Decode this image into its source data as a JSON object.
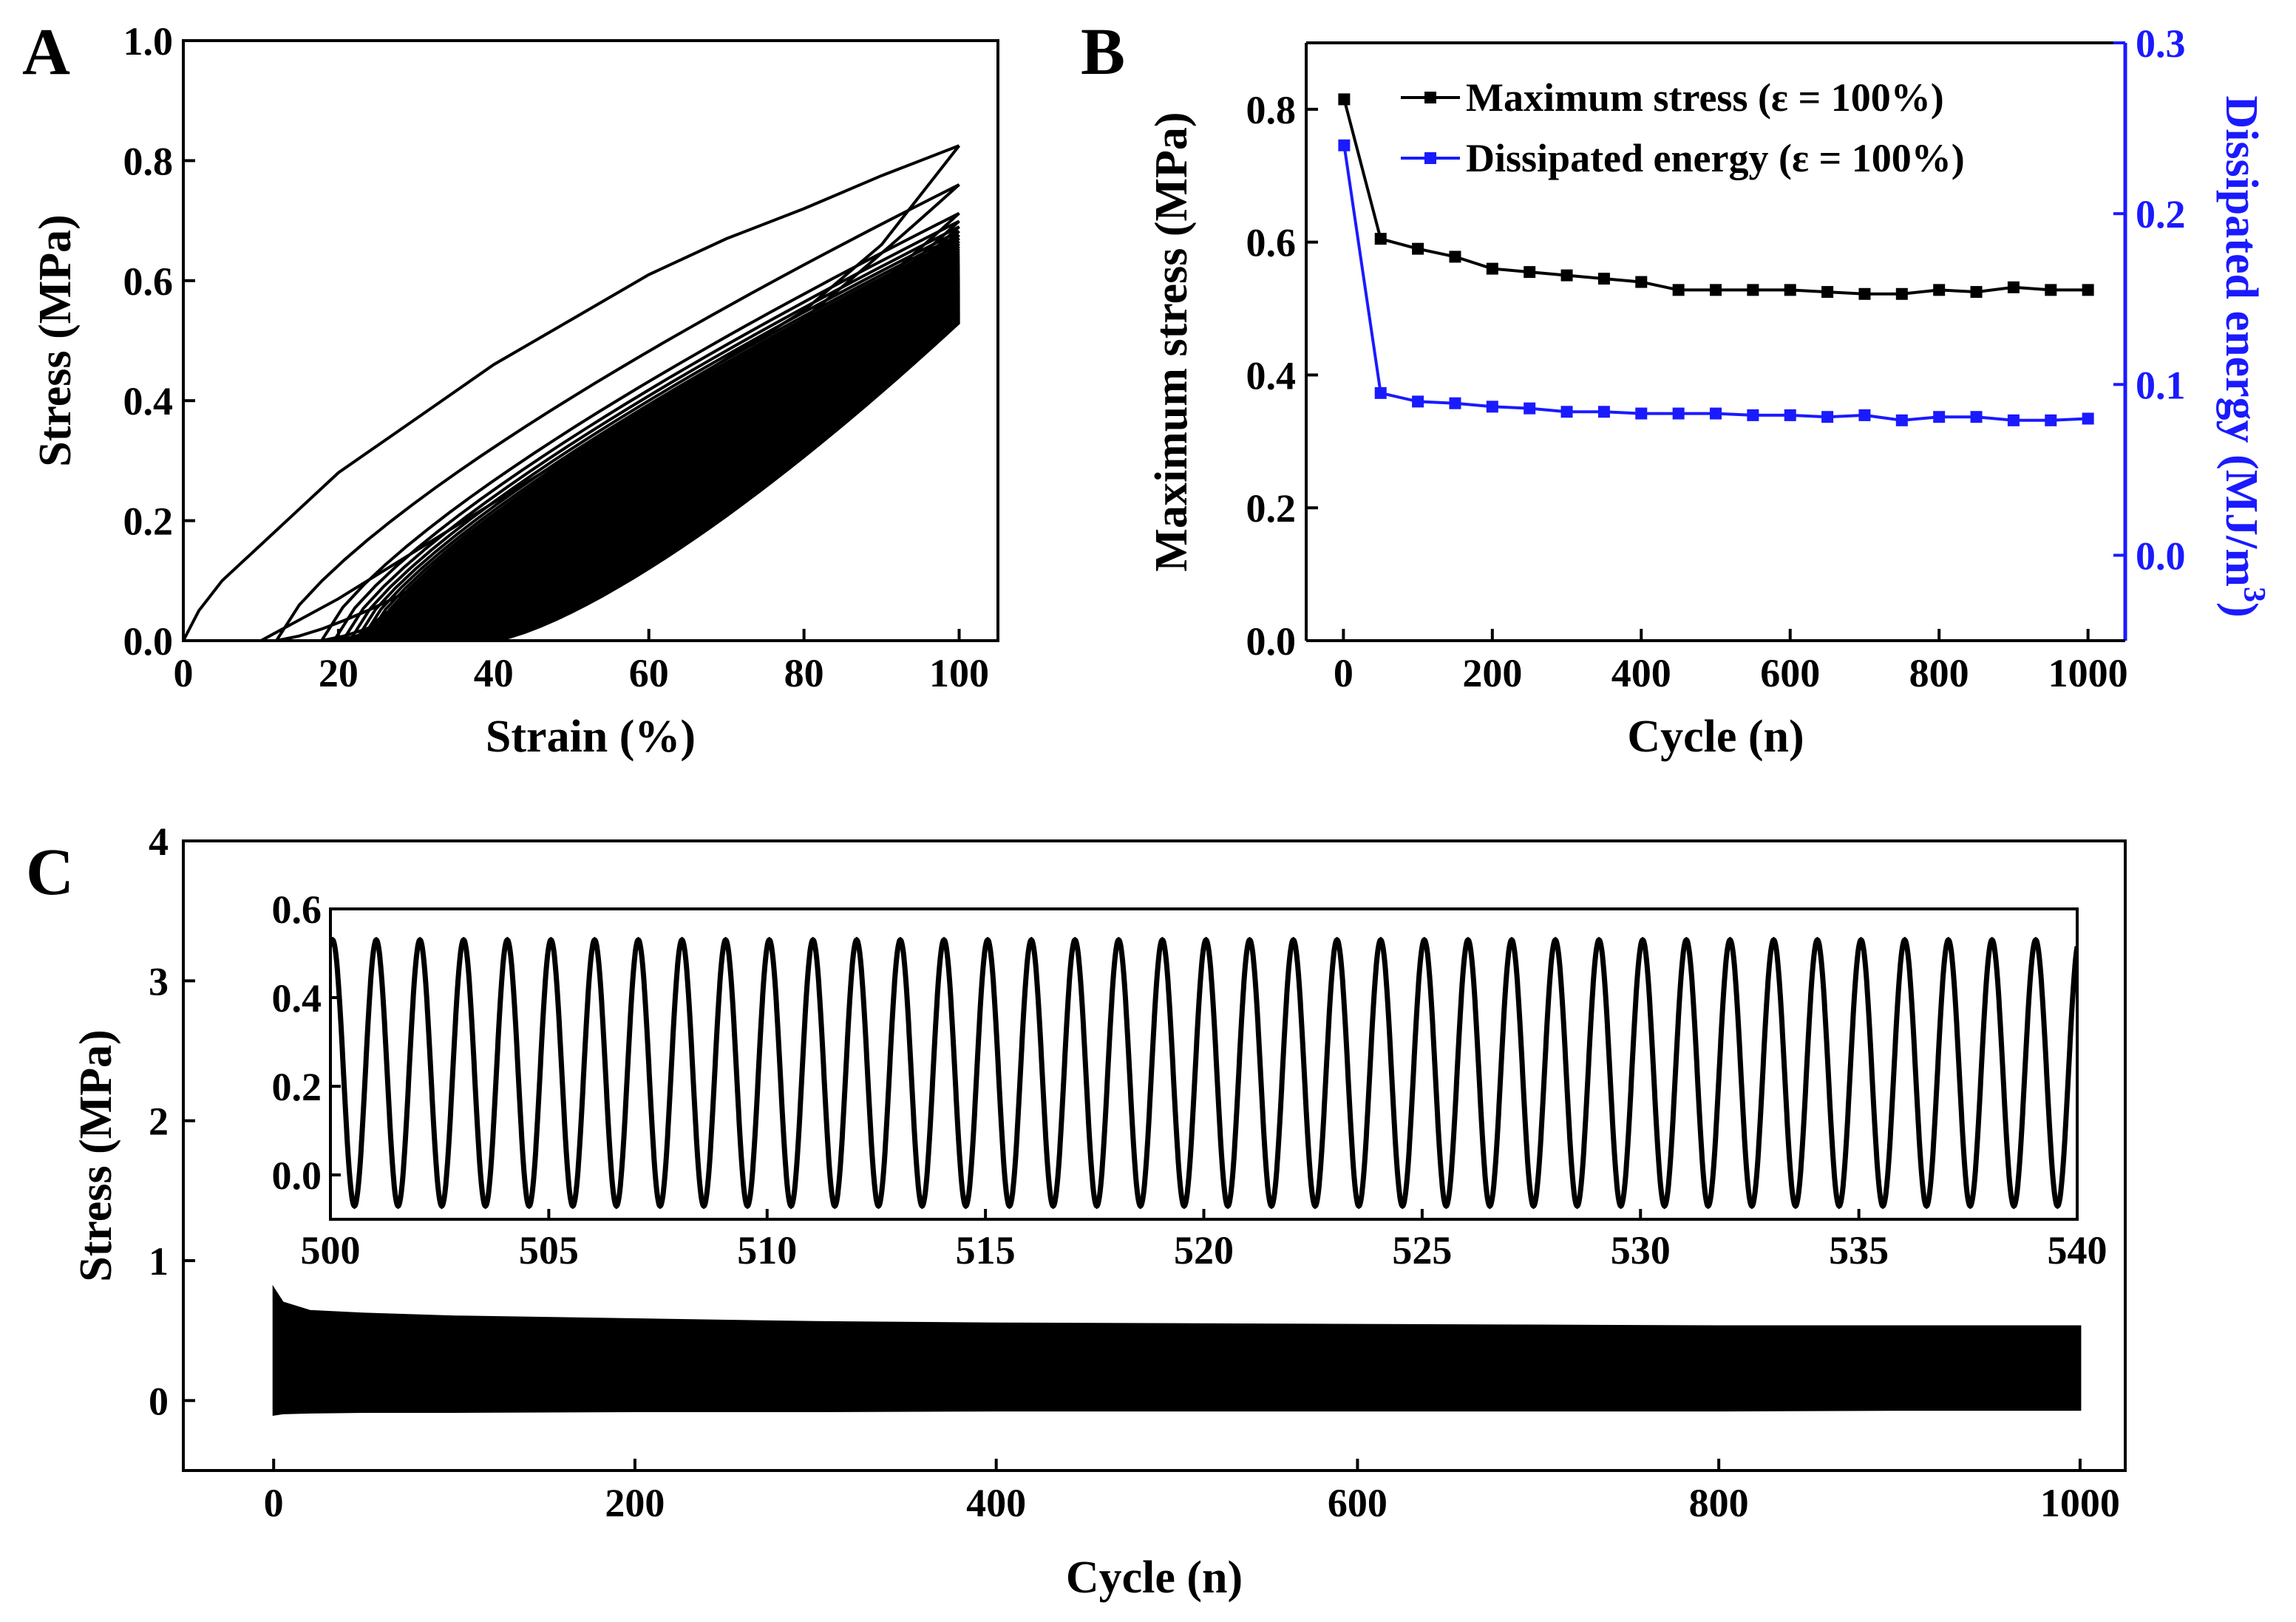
{
  "chart_data": [
    {
      "panel": "A",
      "type": "line",
      "title": "",
      "xlabel": "Strain (%)",
      "ylabel": "Stress (MPa)",
      "xlim": [
        0,
        105
      ],
      "ylim": [
        0,
        1.0
      ],
      "xticks": [
        "0",
        "20",
        "40",
        "60",
        "80",
        "100"
      ],
      "yticks": [
        "0.0",
        "0.2",
        "0.4",
        "0.6",
        "0.8",
        "1.0"
      ],
      "first_cycle": {
        "loading": {
          "x": [
            0,
            2,
            5,
            10,
            20,
            30,
            40,
            50,
            60,
            70,
            80,
            90,
            100
          ],
          "y": [
            0,
            0.05,
            0.1,
            0.16,
            0.28,
            0.37,
            0.46,
            0.535,
            0.61,
            0.67,
            0.72,
            0.775,
            0.825
          ]
        },
        "unloading": {
          "x": [
            100,
            90,
            80,
            70,
            60,
            50,
            40,
            30,
            20,
            10
          ],
          "y": [
            0.825,
            0.66,
            0.55,
            0.47,
            0.39,
            0.31,
            0.23,
            0.15,
            0.07,
            0.0
          ]
        }
      },
      "later_cycles": {
        "count": 1000,
        "peak_stress_range": [
          0.53,
          0.76
        ],
        "residual_strain_range": [
          12,
          40
        ]
      }
    },
    {
      "panel": "B",
      "type": "line",
      "xlabel": "Cycle (n)",
      "ylabel": "Maximum stress (MPa)",
      "ylabel_right": "Dissipated energy (MJ/m",
      "ylabel_right_sup": "3",
      "xlim": [
        -50,
        1050
      ],
      "ylim": [
        0,
        0.9
      ],
      "ylim_right": [
        -0.05,
        0.3
      ],
      "xticks": [
        "0",
        "200",
        "400",
        "600",
        "800",
        "1000"
      ],
      "yticks": [
        "0.0",
        "0.2",
        "0.4",
        "0.6",
        "0.8"
      ],
      "yticks_right": [
        "0.0",
        "0.1",
        "0.2",
        "0.3"
      ],
      "legend_position": "top-right",
      "x": [
        1,
        50,
        100,
        150,
        200,
        250,
        300,
        350,
        400,
        450,
        500,
        550,
        600,
        650,
        700,
        750,
        800,
        850,
        900,
        950,
        1000
      ],
      "series": [
        {
          "name": "Maximum stress (ε = 100%)",
          "color": "#000000",
          "axis": "left",
          "values": [
            0.815,
            0.605,
            0.59,
            0.578,
            0.56,
            0.555,
            0.55,
            0.545,
            0.54,
            0.528,
            0.528,
            0.528,
            0.528,
            0.525,
            0.522,
            0.522,
            0.528,
            0.525,
            0.532,
            0.528,
            0.528
          ]
        },
        {
          "name": "Dissipated energy (ε = 100%)",
          "color": "#1a1aff",
          "axis": "right",
          "values": [
            0.24,
            0.095,
            0.09,
            0.089,
            0.087,
            0.086,
            0.084,
            0.084,
            0.083,
            0.083,
            0.083,
            0.082,
            0.082,
            0.081,
            0.082,
            0.079,
            0.081,
            0.081,
            0.079,
            0.079,
            0.08
          ]
        }
      ]
    },
    {
      "panel": "C",
      "type": "line",
      "xlabel": "Cycle (n)",
      "ylabel": "Stress (MPa)",
      "xlim": [
        -50,
        1025
      ],
      "ylim": [
        -0.5,
        4
      ],
      "xticks": [
        "0",
        "200",
        "400",
        "600",
        "800",
        "1000"
      ],
      "yticks": [
        "0",
        "1",
        "2",
        "3",
        "4"
      ],
      "envelope": {
        "x": [
          0,
          5,
          20,
          50,
          100,
          200,
          300,
          400,
          500,
          600,
          700,
          800,
          900,
          1000
        ],
        "max": [
          0.8,
          0.7,
          0.64,
          0.62,
          0.6,
          0.58,
          0.56,
          0.55,
          0.545,
          0.54,
          0.535,
          0.53,
          0.53,
          0.53
        ],
        "min": [
          -0.1,
          -0.09,
          -0.085,
          -0.08,
          -0.08,
          -0.075,
          -0.075,
          -0.07,
          -0.07,
          -0.07,
          -0.07,
          -0.07,
          -0.065,
          -0.065
        ]
      },
      "inset": {
        "xlim": [
          500,
          540
        ],
        "ylim": [
          -0.1,
          0.6
        ],
        "xticks": [
          "500",
          "505",
          "510",
          "515",
          "520",
          "525",
          "530",
          "535",
          "540"
        ],
        "yticks": [
          "0.0",
          "0.2",
          "0.4",
          "0.6"
        ],
        "cycles": 40,
        "period": 1,
        "peak": 0.53,
        "trough": -0.07
      }
    }
  ],
  "labels": {
    "panel_a": "A",
    "panel_b": "B",
    "panel_c": "C"
  }
}
